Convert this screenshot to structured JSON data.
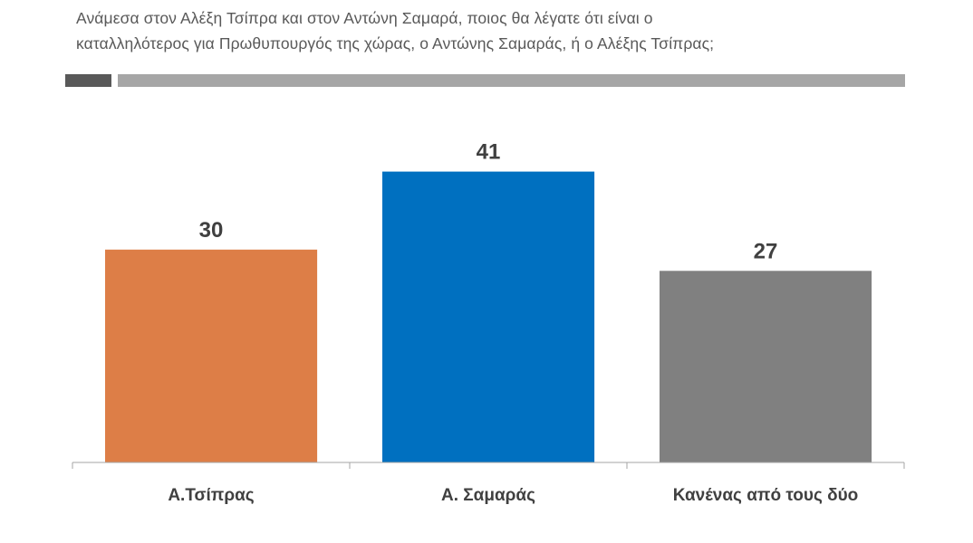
{
  "question": {
    "line1": "Ανάμεσα στον Αλέξη Τσίπρα και στον Αντώνη Σαμαρά, ποιος θα λέγατε ότι είναι ο",
    "line2": "καταλληλότερος για Πρωθυπουργός της χώρας, ο Αντώνης Σαμαράς, ή ο Αλέξης Τσίπρας;"
  },
  "colors": {
    "text": "#404040",
    "question_text": "#595959",
    "divider_dark": "#595959",
    "divider_light": "#a6a6a6",
    "axis": "#a6a6a6"
  },
  "chart_data": {
    "type": "bar",
    "title": "",
    "xlabel": "",
    "ylabel": "",
    "categories": [
      "Α.Τσίπρας",
      "Α. Σαμαράς",
      "Κανένας από τους δύο"
    ],
    "values": [
      30,
      41,
      27
    ],
    "value_labels": [
      "30",
      "41",
      "27"
    ],
    "bar_colors": [
      "#dd7e47",
      "#0070c0",
      "#808080"
    ],
    "ylim": [
      0,
      43.5
    ],
    "grid": false,
    "legend": "none"
  }
}
